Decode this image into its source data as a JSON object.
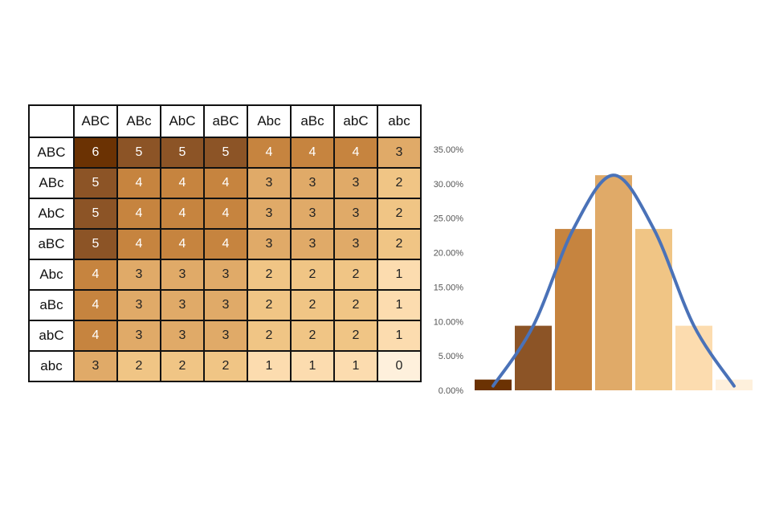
{
  "punnett": {
    "col_headers": [
      "ABC",
      "ABc",
      "AbC",
      "aBC",
      "Abc",
      "aBc",
      "abC",
      "abc"
    ],
    "row_headers": [
      "ABC",
      "ABc",
      "AbC",
      "aBC",
      "Abc",
      "aBc",
      "abC",
      "abc"
    ],
    "cells": [
      [
        "6",
        "5",
        "5",
        "5",
        "4",
        "4",
        "4",
        "3"
      ],
      [
        "5",
        "4",
        "4",
        "4",
        "3",
        "3",
        "3",
        "2"
      ],
      [
        "5",
        "4",
        "4",
        "4",
        "3",
        "3",
        "3",
        "2"
      ],
      [
        "5",
        "4",
        "4",
        "4",
        "3",
        "3",
        "3",
        "2"
      ],
      [
        "4",
        "3",
        "3",
        "3",
        "2",
        "2",
        "2",
        "1"
      ],
      [
        "4",
        "3",
        "3",
        "3",
        "2",
        "2",
        "2",
        "1"
      ],
      [
        "4",
        "3",
        "3",
        "3",
        "2",
        "2",
        "2",
        "1"
      ],
      [
        "3",
        "2",
        "2",
        "2",
        "1",
        "1",
        "1",
        "0"
      ]
    ],
    "shade_colors": {
      "6": "#6b3203",
      "5": "#8c5426",
      "4": "#c6843f",
      "3": "#e0aa68",
      "2": "#f0c585",
      "1": "#fcdcaf",
      "0": "#fef0dc"
    }
  },
  "chart_data": {
    "type": "bar",
    "values": [
      1.56,
      9.38,
      23.44,
      31.25,
      23.44,
      9.38,
      1.56
    ],
    "bar_colors": [
      "#6b3203",
      "#8c5426",
      "#c6843f",
      "#e0aa68",
      "#f0c585",
      "#fcdcaf",
      "#fef0dc"
    ],
    "curve_color": "#4a72b8",
    "ylim": [
      0,
      35
    ],
    "yticks": [
      "0.00%",
      "5.00%",
      "10.00%",
      "15.00%",
      "20.00%",
      "25.00%",
      "30.00%",
      "35.00%"
    ],
    "grid": false,
    "legend": "none",
    "overlay": "smooth line through bar tops"
  }
}
